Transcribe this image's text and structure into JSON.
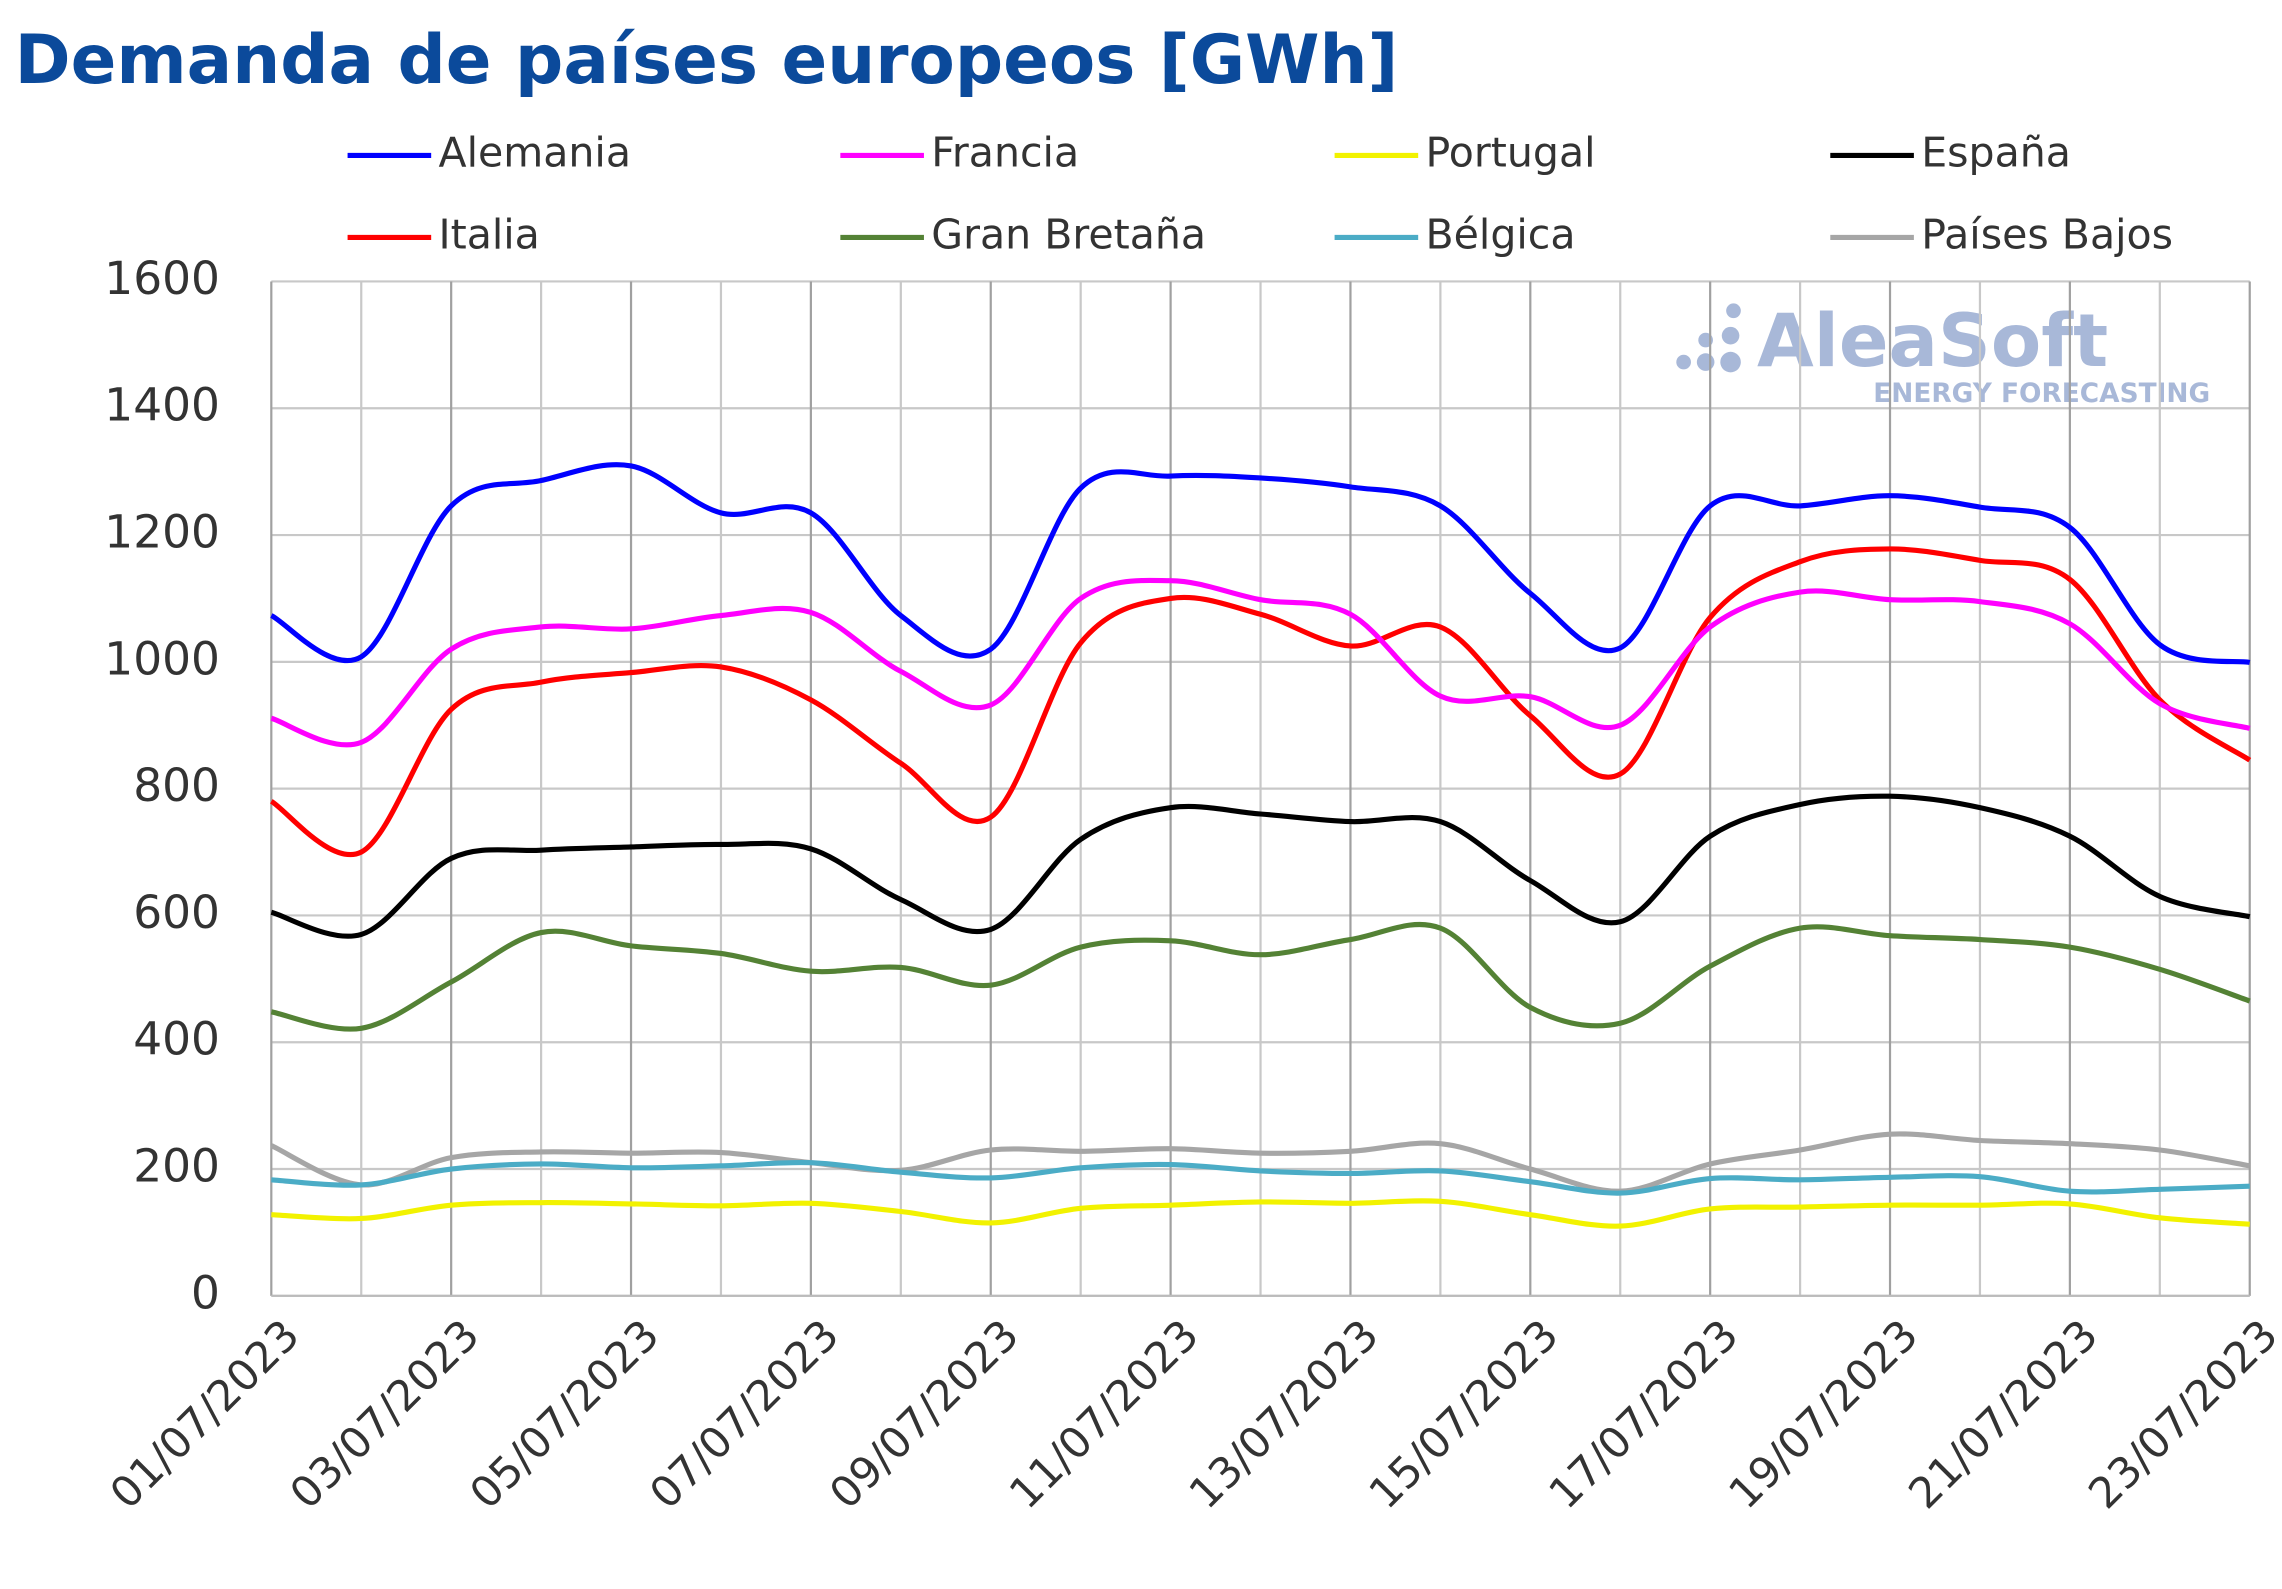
{
  "chart_data": {
    "type": "line",
    "title": "Demanda de países europeos [GWh]",
    "watermark": {
      "name": "AleaSoft",
      "tagline": "ENERGY FORECASTING"
    },
    "categories": [
      "01/07/2023",
      null,
      "03/07/2023",
      null,
      "05/07/2023",
      null,
      "07/07/2023",
      null,
      "09/07/2023",
      null,
      "11/07/2023",
      null,
      "13/07/2023",
      null,
      "15/07/2023",
      null,
      "17/07/2023",
      null,
      "19/07/2023",
      null,
      "21/07/2023",
      null,
      "23/07/2023"
    ],
    "ylim": [
      0,
      1600
    ],
    "yticks": [
      0,
      200,
      400,
      600,
      800,
      1000,
      1200,
      1400,
      1600
    ],
    "grid": true,
    "legend": "top",
    "series": [
      {
        "name": "Alemania",
        "color": "#0000ff",
        "values": [
          1073,
          1008,
          1246,
          1286,
          1309,
          1235,
          1235,
          1073,
          1020,
          1274,
          1293,
          1290,
          1276,
          1246,
          1108,
          1022,
          1246,
          1246,
          1262,
          1244,
          1212,
          1027,
          999
        ]
      },
      {
        "name": "Francia",
        "color": "#ff00ff",
        "values": [
          911,
          873,
          1020,
          1055,
          1052,
          1073,
          1078,
          985,
          932,
          1100,
          1128,
          1098,
          1075,
          946,
          945,
          900,
          1055,
          1110,
          1098,
          1095,
          1060,
          934,
          895
        ]
      },
      {
        "name": "Portugal",
        "color": "#f2f200",
        "values": [
          128,
          122,
          143,
          147,
          145,
          142,
          146,
          133,
          115,
          138,
          143,
          148,
          146,
          149,
          128,
          110,
          137,
          140,
          143,
          143,
          145,
          123,
          113
        ]
      },
      {
        "name": "España",
        "color": "#000000",
        "values": [
          605,
          570,
          690,
          703,
          708,
          712,
          705,
          625,
          578,
          720,
          770,
          760,
          748,
          748,
          655,
          590,
          725,
          775,
          788,
          770,
          725,
          630,
          598
        ]
      },
      {
        "name": "Italia",
        "color": "#ff0000",
        "values": [
          780,
          700,
          925,
          968,
          983,
          992,
          940,
          840,
          755,
          1030,
          1100,
          1075,
          1025,
          1055,
          915,
          823,
          1070,
          1158,
          1178,
          1160,
          1130,
          940,
          845
        ]
      },
      {
        "name": "Gran Bretaña",
        "color": "#548235",
        "values": [
          448,
          422,
          495,
          573,
          552,
          540,
          512,
          518,
          490,
          550,
          560,
          538,
          562,
          580,
          455,
          430,
          520,
          580,
          568,
          562,
          550,
          515,
          465
        ]
      },
      {
        "name": "Bélgica",
        "color": "#4bacc6",
        "values": [
          183,
          175,
          200,
          208,
          202,
          205,
          210,
          195,
          186,
          202,
          207,
          197,
          193,
          197,
          180,
          162,
          185,
          183,
          187,
          188,
          165,
          168,
          173
        ]
      },
      {
        "name": "Países Bajos",
        "color": "#a6a6a6",
        "values": [
          237,
          175,
          218,
          227,
          225,
          226,
          210,
          198,
          230,
          228,
          232,
          225,
          228,
          240,
          200,
          165,
          208,
          230,
          255,
          245,
          240,
          230,
          205
        ]
      }
    ]
  }
}
